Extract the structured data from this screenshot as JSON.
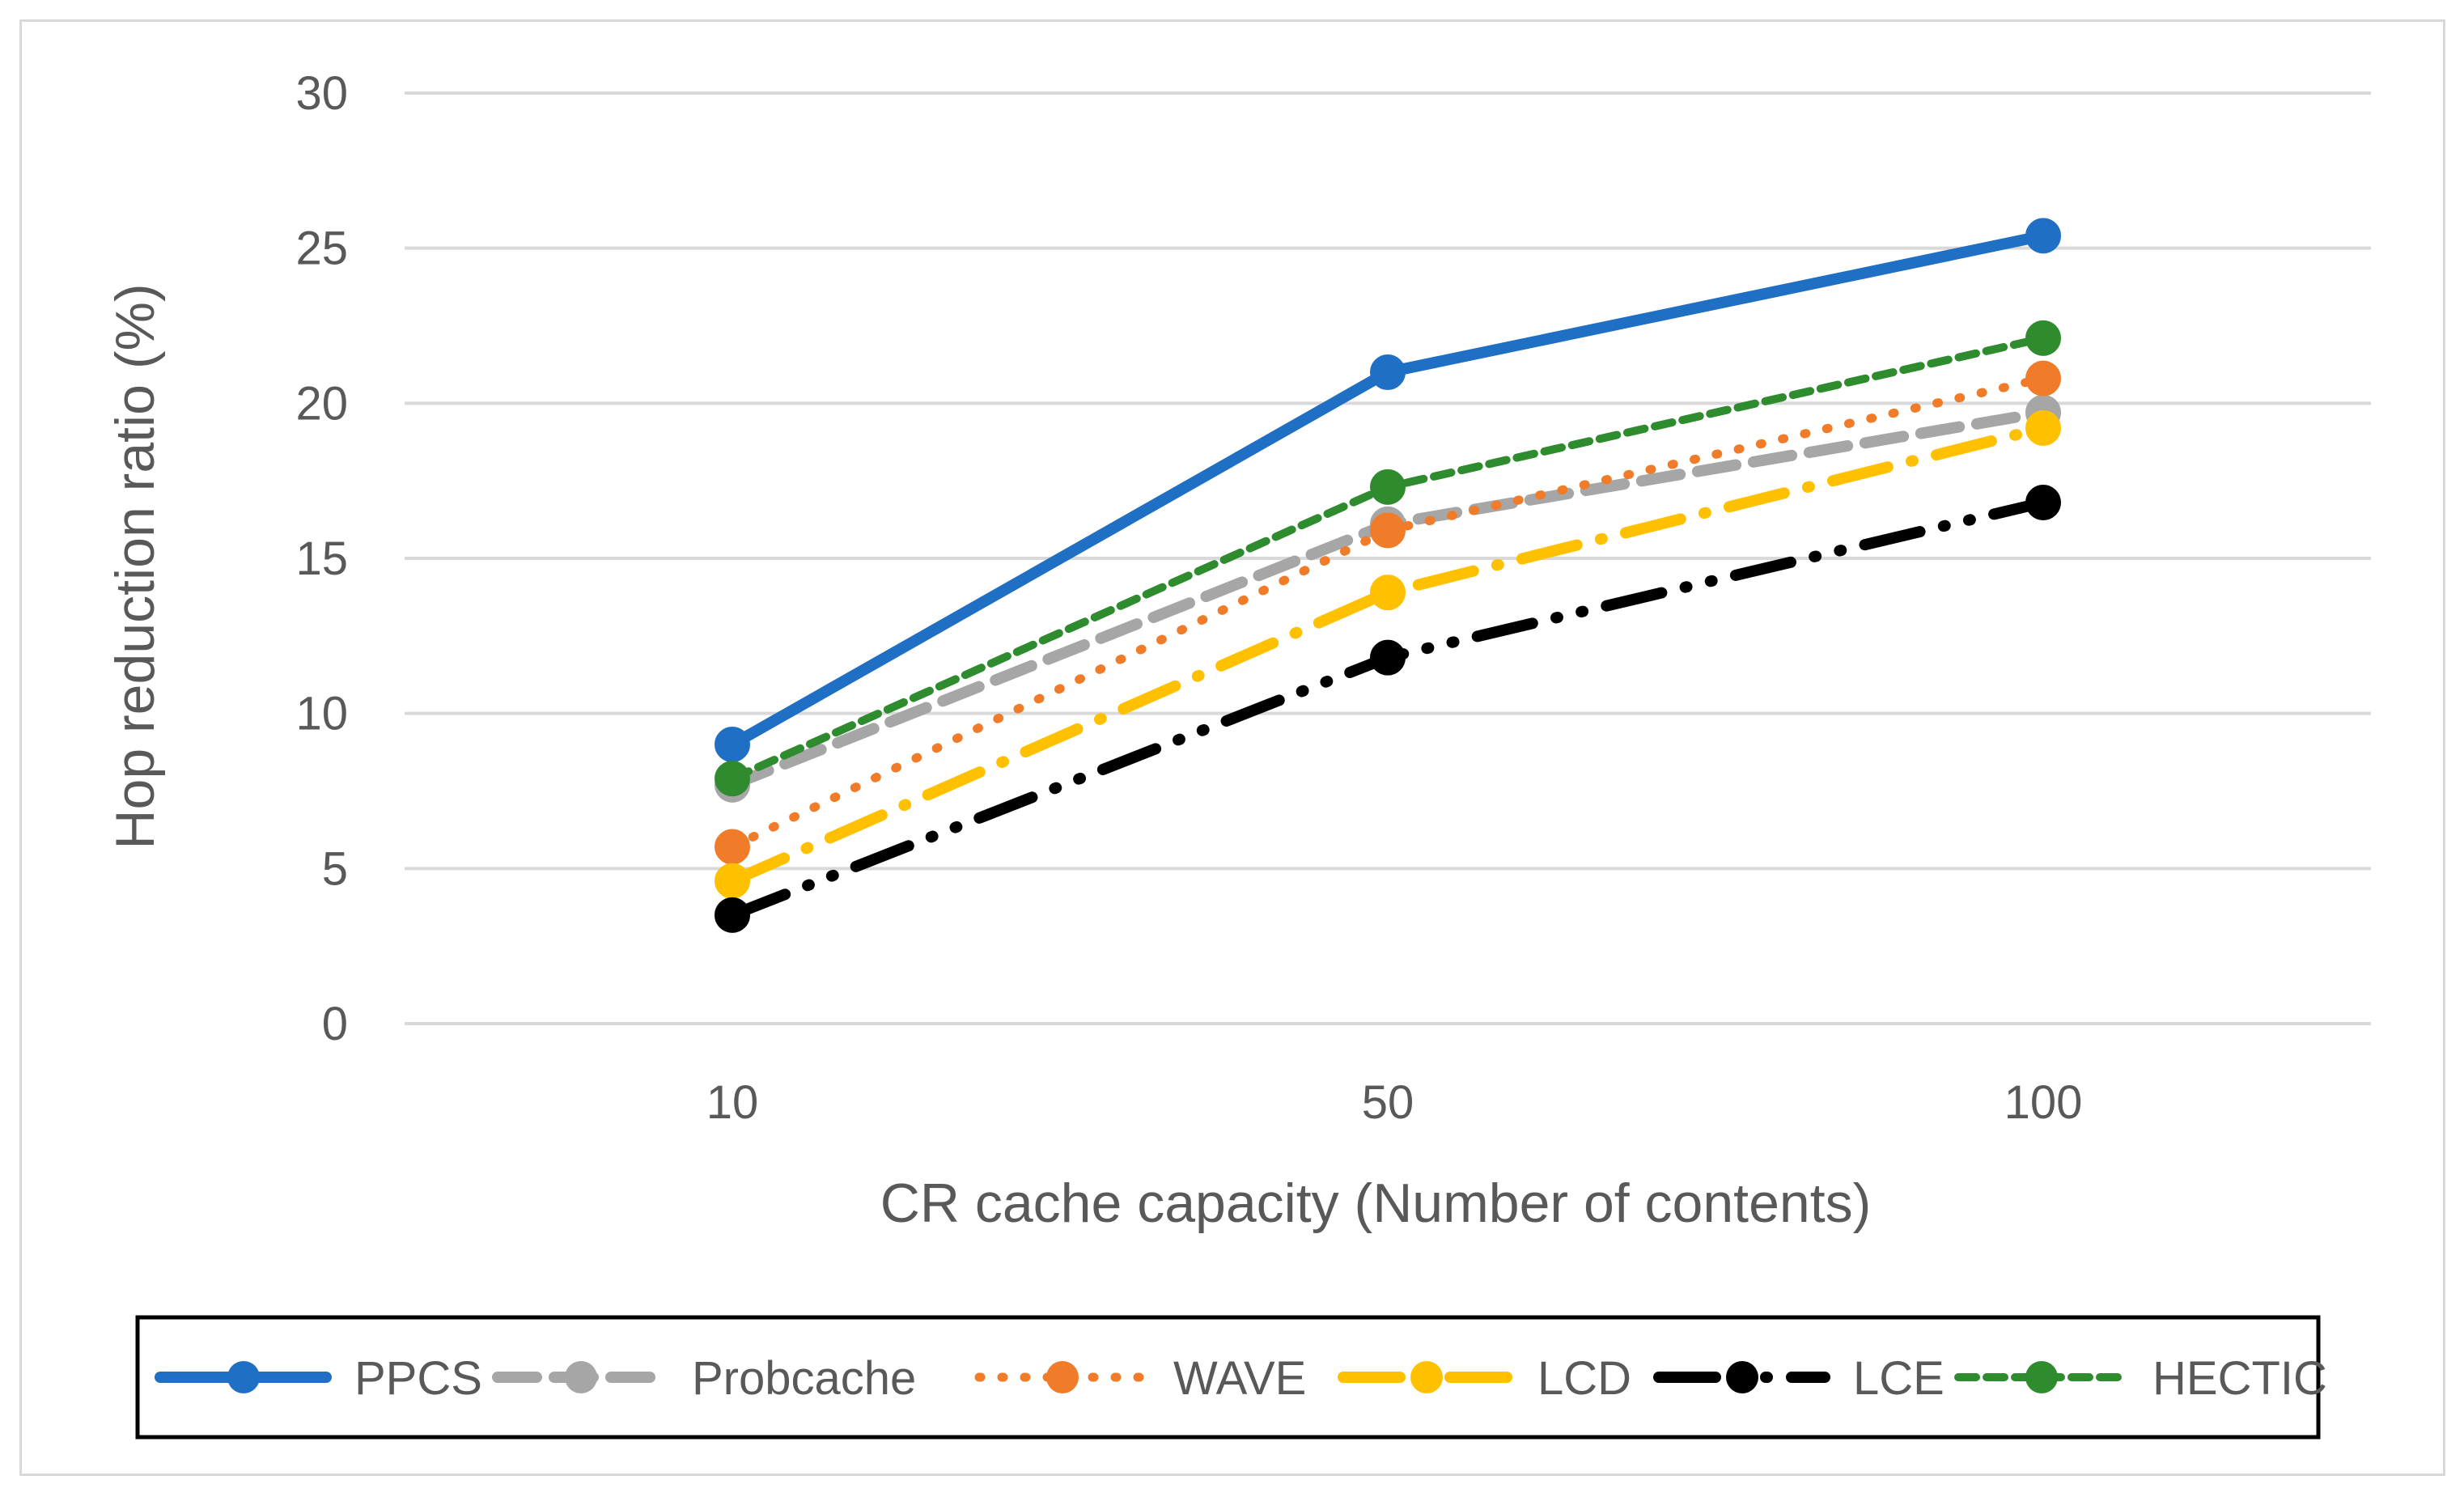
{
  "chart_data": {
    "type": "line",
    "title": "",
    "xlabel": "CR cache capacity (Number of contents)",
    "ylabel": "Hop reduction ratio (%)",
    "categories": [
      "10",
      "50",
      "100"
    ],
    "ylim": [
      0,
      30
    ],
    "yticks": [
      0,
      5,
      10,
      15,
      20,
      25,
      30
    ],
    "grid": true,
    "legend_position": "bottom",
    "series": [
      {
        "name": "PPCS",
        "values": [
          9.0,
          21.0,
          25.4
        ],
        "color": "#1f6fc5",
        "dash": "solid"
      },
      {
        "name": "Probcache",
        "values": [
          7.7,
          16.1,
          19.7
        ],
        "color": "#a6a6a6",
        "dash": "dash"
      },
      {
        "name": "WAVE",
        "values": [
          5.7,
          15.9,
          20.8
        ],
        "color": "#f07c2a",
        "dash": "dot"
      },
      {
        "name": "LCD",
        "values": [
          4.6,
          13.9,
          19.2
        ],
        "color": "#ffc000",
        "dash": "longdashdot"
      },
      {
        "name": "LCE",
        "values": [
          3.5,
          11.8,
          16.8
        ],
        "color": "#000000",
        "dash": "longdashdotdot"
      },
      {
        "name": "HECTIC",
        "values": [
          7.9,
          17.3,
          22.1
        ],
        "color": "#2e8b2e",
        "dash": "shortdash"
      }
    ]
  }
}
